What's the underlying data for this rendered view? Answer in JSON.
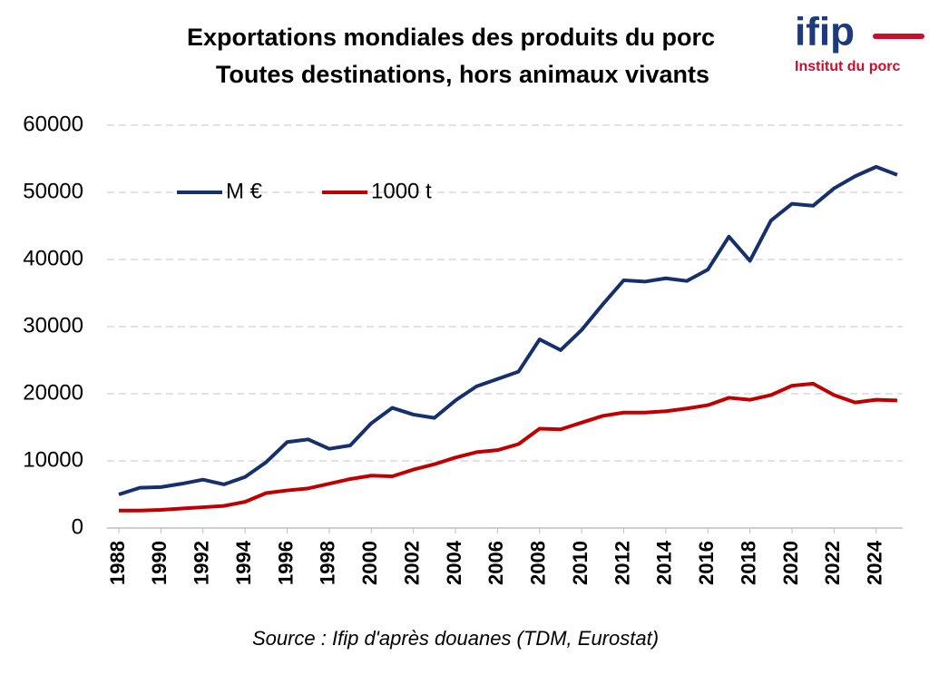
{
  "chart_data": {
    "type": "line",
    "title": [
      "Exportations mondiales des produits du porc",
      "Toutes destinations, hors animaux vivants"
    ],
    "logo": {
      "name": "ifip",
      "subtitle": "Institut du porc"
    },
    "source": "Source : Ifip d'après douanes (TDM, Eurostat)",
    "x": [
      1988,
      1989,
      1990,
      1991,
      1992,
      1993,
      1994,
      1995,
      1996,
      1997,
      1998,
      1999,
      2000,
      2001,
      2002,
      2003,
      2004,
      2005,
      2006,
      2007,
      2008,
      2009,
      2010,
      2011,
      2012,
      2013,
      2014,
      2015,
      2016,
      2017,
      2018,
      2019,
      2020,
      2021,
      2022,
      2023,
      2024,
      2025
    ],
    "series": [
      {
        "name": "M €",
        "color": "#15306b",
        "values": [
          5000,
          6000,
          6100,
          6600,
          7200,
          6500,
          7600,
          9800,
          12800,
          13200,
          11800,
          12300,
          15600,
          17900,
          16900,
          16400,
          19000,
          21100,
          22200,
          23300,
          28100,
          26500,
          29500,
          33300,
          36900,
          36700,
          37200,
          36800,
          38500,
          43400,
          39800,
          45800,
          48300,
          48000,
          50600,
          52400,
          53800,
          52600
        ]
      },
      {
        "name": "1000 t",
        "color": "#c00000",
        "values": [
          2600,
          2600,
          2700,
          2900,
          3100,
          3300,
          3900,
          5200,
          5600,
          5900,
          6600,
          7300,
          7800,
          7700,
          8700,
          9500,
          10500,
          11300,
          11600,
          12500,
          14800,
          14700,
          15700,
          16700,
          17200,
          17200,
          17400,
          17800,
          18300,
          19400,
          19100,
          19800,
          21200,
          21500,
          19800,
          18700,
          19100,
          19000
        ]
      }
    ],
    "xlim": [
      1987.44,
      2025.26
    ],
    "xticks": [
      1988,
      1990,
      1992,
      1994,
      1996,
      1998,
      2000,
      2002,
      2004,
      2006,
      2008,
      2010,
      2012,
      2014,
      2016,
      2018,
      2020,
      2022,
      2024
    ],
    "ylim": [
      0,
      60000
    ],
    "yticks": [
      0,
      10000,
      20000,
      30000,
      40000,
      50000,
      60000
    ],
    "grid": true,
    "legend": "top-left"
  }
}
